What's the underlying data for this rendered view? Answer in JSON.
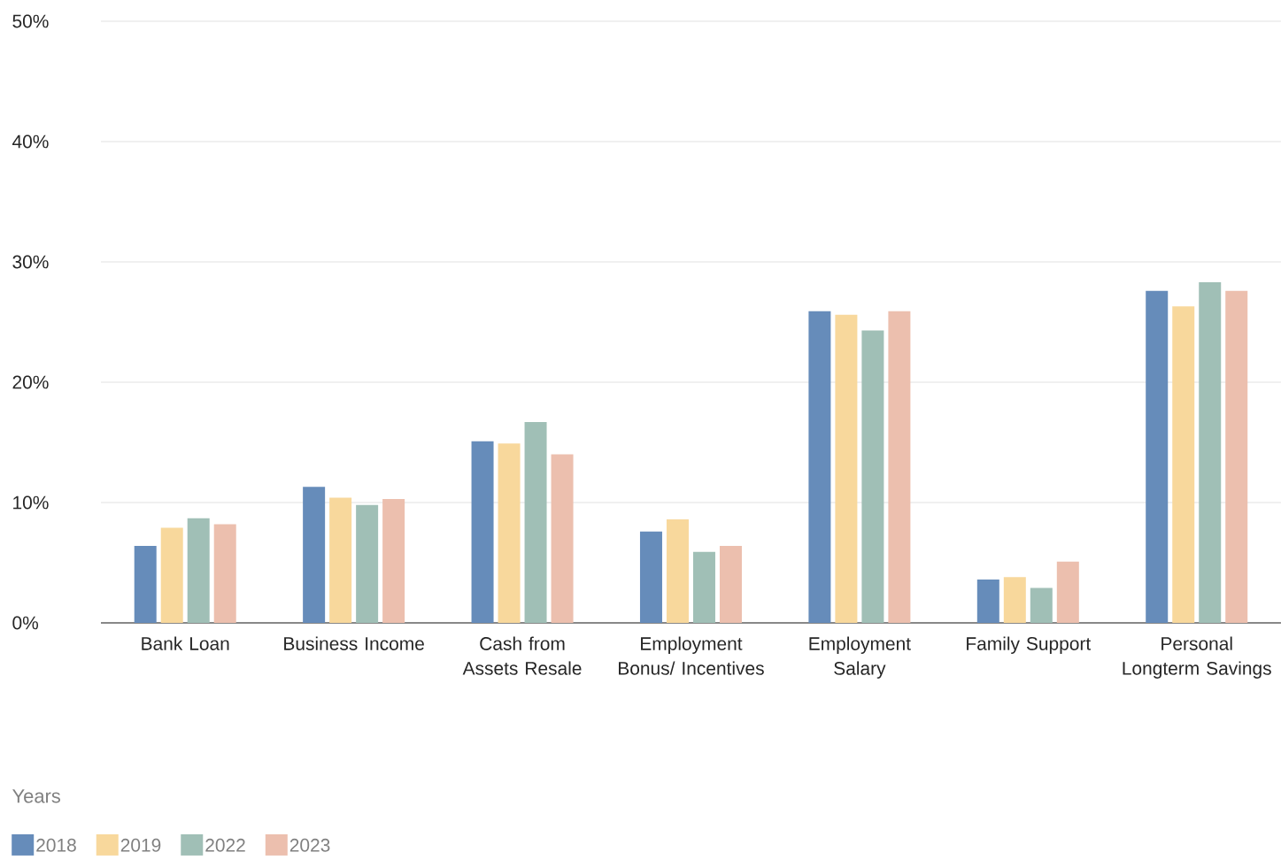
{
  "chart_data": {
    "type": "bar",
    "legend_title": "Years",
    "categories": [
      "Bank Loan",
      "Business Income",
      "Cash from Assets Resale",
      "Employment Bonus/ Incentives",
      "Employment Salary",
      "Family Support",
      "Personal Longterm Savings"
    ],
    "series": [
      {
        "name": "2018",
        "color": "#668cba",
        "values": [
          6.4,
          11.3,
          15.1,
          7.6,
          25.9,
          3.6,
          27.6
        ]
      },
      {
        "name": "2019",
        "color": "#f8d89c",
        "values": [
          7.9,
          10.4,
          14.9,
          8.6,
          25.6,
          3.8,
          26.3
        ]
      },
      {
        "name": "2022",
        "color": "#a0bfb6",
        "values": [
          8.7,
          9.8,
          16.7,
          5.9,
          24.3,
          2.9,
          28.3
        ]
      },
      {
        "name": "2023",
        "color": "#ecbfae",
        "values": [
          8.2,
          10.3,
          14.0,
          6.4,
          25.9,
          5.1,
          27.6
        ]
      }
    ],
    "ylim": [
      0,
      50
    ],
    "yticks": [
      {
        "value": 0,
        "label": "0%"
      },
      {
        "value": 10,
        "label": "10%"
      },
      {
        "value": 20,
        "label": "20%"
      },
      {
        "value": 30,
        "label": "30%"
      },
      {
        "value": 40,
        "label": "40%"
      },
      {
        "value": 50,
        "label": "50%"
      }
    ],
    "grid": "y",
    "legend": "bottom"
  }
}
